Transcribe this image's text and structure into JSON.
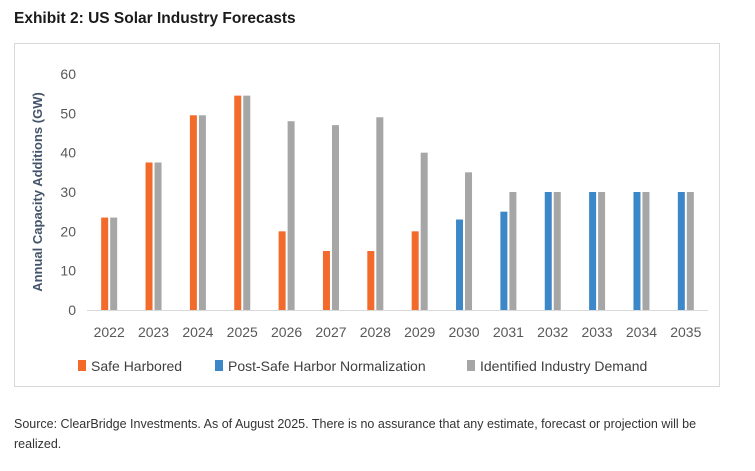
{
  "title": "Exhibit 2: US Solar Industry Forecasts",
  "source": "Source: ClearBridge Investments. As of August 2025. There is no assurance that any estimate, forecast or projection will be realized.",
  "chart_data": {
    "type": "bar",
    "ylabel": "Annual Capacity Additions (GW)",
    "xlabel": "",
    "ylim": [
      0,
      60
    ],
    "yticks": [
      0,
      10,
      20,
      30,
      40,
      50,
      60
    ],
    "grid": false,
    "legend_position": "bottom",
    "categories": [
      "2022",
      "2023",
      "2024",
      "2025",
      "2026",
      "2027",
      "2028",
      "2029",
      "2030",
      "2031",
      "2032",
      "2033",
      "2034",
      "2035"
    ],
    "series": [
      {
        "name": "Safe Harbored",
        "color": "#F26B2A",
        "values": [
          23.5,
          37.5,
          49.5,
          54.5,
          20,
          15,
          15,
          20,
          null,
          null,
          null,
          null,
          null,
          null
        ]
      },
      {
        "name": "Post-Safe Harbor Normalization",
        "color": "#3B87C7",
        "values": [
          null,
          null,
          null,
          null,
          null,
          null,
          null,
          null,
          23,
          25,
          30,
          30,
          30,
          30
        ]
      },
      {
        "name": "Identified Industry Demand",
        "color": "#A6A6A6",
        "values": [
          23.5,
          37.5,
          49.5,
          54.5,
          48,
          47,
          49,
          40,
          35,
          30,
          30,
          30,
          30,
          30
        ]
      }
    ]
  }
}
